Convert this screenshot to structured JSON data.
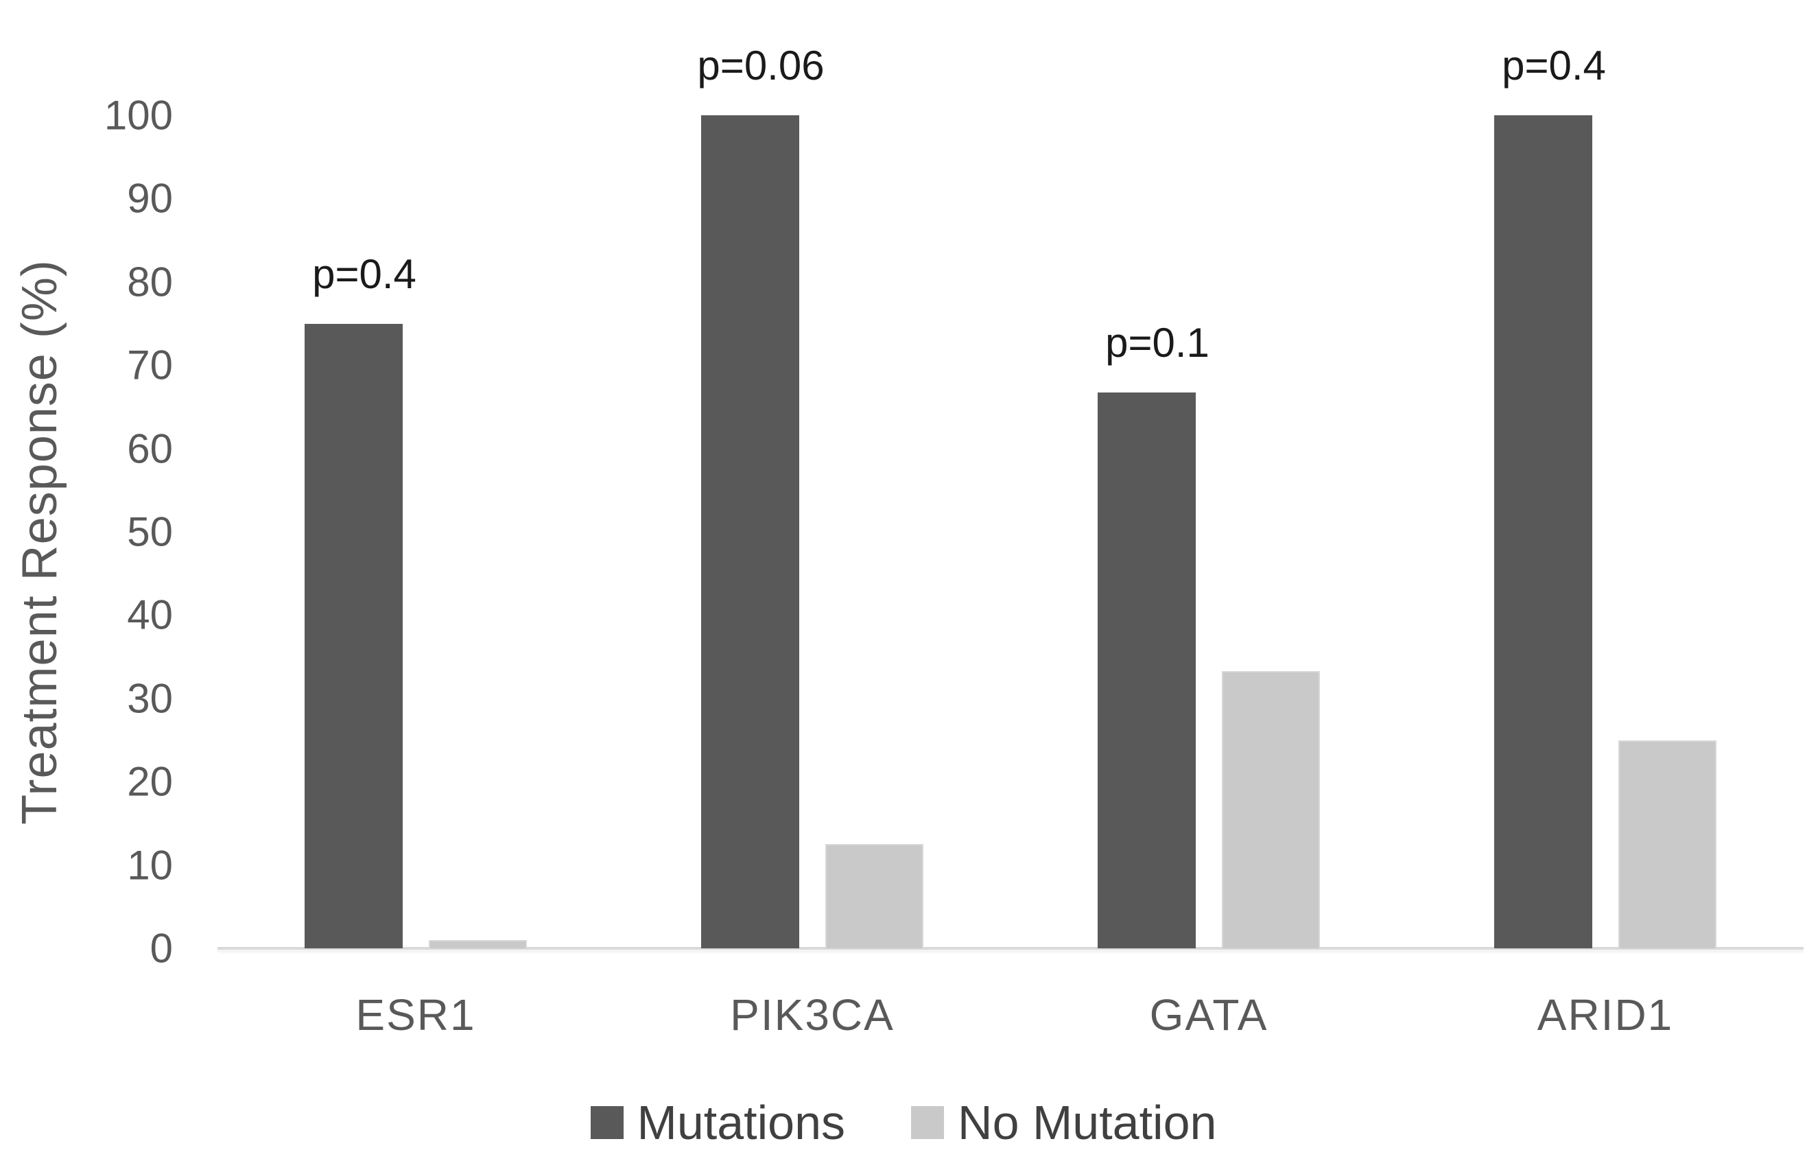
{
  "chart_data": {
    "type": "bar",
    "title": "",
    "xlabel": "",
    "ylabel": "Treatment Response (%)",
    "ylim": [
      0,
      100
    ],
    "y_ticks": [
      0,
      10,
      20,
      30,
      40,
      50,
      60,
      70,
      80,
      90,
      100
    ],
    "grid": false,
    "legend_position": "bottom",
    "categories": [
      "ESR1",
      "PIK3CA",
      "GATA",
      "ARID1"
    ],
    "series": [
      {
        "name": "Mutations",
        "color": "#595959",
        "values": [
          75,
          100,
          66.7,
          100
        ]
      },
      {
        "name": "No Mutation",
        "color": "#c9c9c9",
        "values": [
          1,
          12.5,
          33.3,
          25
        ]
      }
    ],
    "annotations": [
      {
        "category": "ESR1",
        "text": "p=0.4"
      },
      {
        "category": "PIK3CA",
        "text": "p=0.06"
      },
      {
        "category": "GATA",
        "text": "p=0.1"
      },
      {
        "category": "ARID1",
        "text": "p=0.4"
      }
    ],
    "colors": {
      "background": "#ffffff",
      "axis_line": "#d9d9d9",
      "axis_text": "#595959",
      "annotation_text": "#1a1a1a",
      "legend_text": "#404040"
    }
  }
}
